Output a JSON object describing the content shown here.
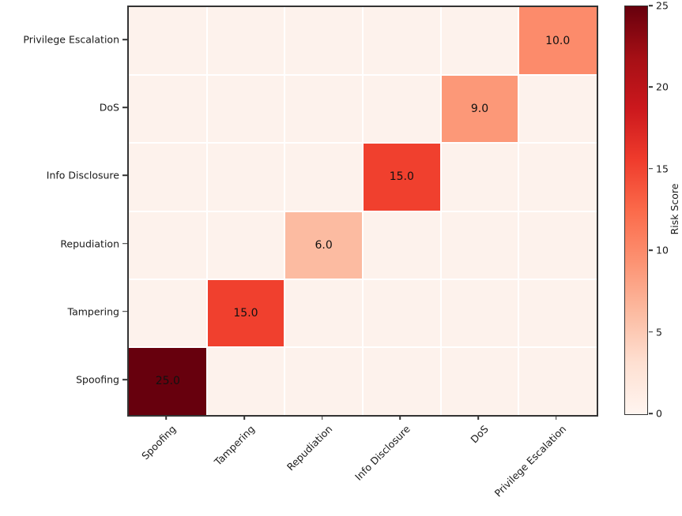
{
  "chart_data": {
    "type": "heatmap",
    "title": "",
    "xlabel": "",
    "ylabel": "",
    "x_categories": [
      "Spoofing",
      "Tampering",
      "Repudiation",
      "Info Disclosure",
      "DoS",
      "Privilege Escalation"
    ],
    "y_categories_top_to_bottom": [
      "Privilege Escalation",
      "DoS",
      "Info Disclosure",
      "Repudiation",
      "Tampering",
      "Spoofing"
    ],
    "grid": true,
    "diagonal_cells": [
      {
        "row": 0,
        "col": 5,
        "x_label": "Privilege Escalation",
        "y_label": "Privilege Escalation",
        "value": 10.0,
        "value_text": "10.0",
        "color": "#fc8b6b"
      },
      {
        "row": 1,
        "col": 4,
        "x_label": "DoS",
        "y_label": "DoS",
        "value": 9.0,
        "value_text": "9.0",
        "color": "#fc9878"
      },
      {
        "row": 2,
        "col": 3,
        "x_label": "Info Disclosure",
        "y_label": "Info Disclosure",
        "value": 15.0,
        "value_text": "15.0",
        "color": "#f0402e"
      },
      {
        "row": 3,
        "col": 2,
        "x_label": "Repudiation",
        "y_label": "Repudiation",
        "value": 6.0,
        "value_text": "6.0",
        "color": "#fcbba1"
      },
      {
        "row": 4,
        "col": 1,
        "x_label": "Tampering",
        "y_label": "Tampering",
        "value": 15.0,
        "value_text": "15.0",
        "color": "#f0402e"
      },
      {
        "row": 5,
        "col": 0,
        "x_label": "Spoofing",
        "y_label": "Spoofing",
        "value": 25.0,
        "value_text": "25.0",
        "color": "#67000d"
      }
    ],
    "off_diagonal_value": 0,
    "off_diagonal_color": "#fdf2ec",
    "colormap": "Reds",
    "colorbar": {
      "label": "Risk Score",
      "min": 0,
      "max": 25,
      "ticks": [
        25,
        20,
        15,
        10,
        5,
        0
      ],
      "gradient_bottom_to_top": [
        "#fff5f0",
        "#fee0d2",
        "#fcbba1",
        "#fc9272",
        "#fb6a4a",
        "#ef3b2c",
        "#cb181d",
        "#a50f15",
        "#67000d"
      ]
    }
  }
}
